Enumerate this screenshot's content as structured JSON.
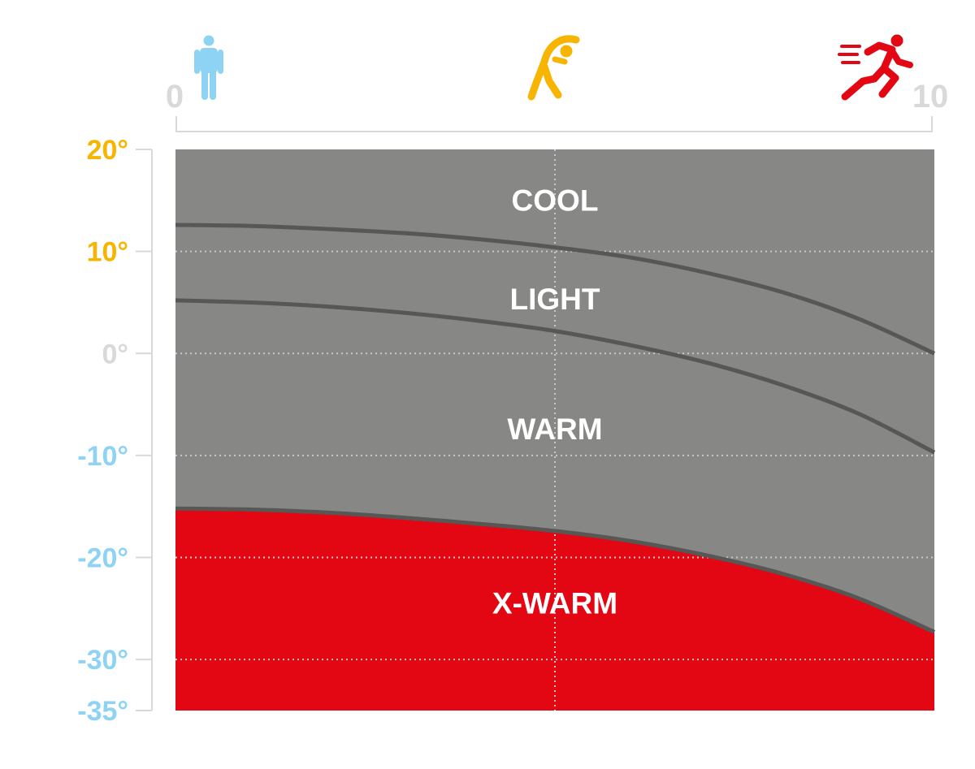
{
  "chart_data": {
    "type": "area",
    "x_axis": {
      "range": [
        0,
        10
      ],
      "tick_labels": [
        "0",
        "10"
      ],
      "position": "top",
      "icons": [
        {
          "name": "standing-person-icon",
          "x": 0.5,
          "color": "#8fd3f4"
        },
        {
          "name": "stretching-person-icon",
          "x": 5,
          "color": "#f7b400"
        },
        {
          "name": "running-person-icon",
          "x": 9.3,
          "color": "#e30613"
        }
      ]
    },
    "y_axis": {
      "range": [
        -35,
        20
      ],
      "ticks": [
        {
          "value": 20,
          "label": "20°",
          "color": "#f7b400"
        },
        {
          "value": 10,
          "label": "10°",
          "color": "#f7b400"
        },
        {
          "value": 0,
          "label": "0°",
          "color": "#d9d9d9"
        },
        {
          "value": -10,
          "label": "-10°",
          "color": "#8fd3f4"
        },
        {
          "value": -20,
          "label": "-20°",
          "color": "#8fd3f4"
        },
        {
          "value": -30,
          "label": "-30°",
          "color": "#8fd3f4"
        },
        {
          "value": -35,
          "label": "-35°",
          "color": "#8fd3f4"
        }
      ]
    },
    "grid": {
      "horizontal": true,
      "vertical_at": [
        5
      ],
      "style": "dotted"
    },
    "boundaries": [
      {
        "name": "cool-light-boundary",
        "x": [
          0,
          1,
          2,
          3,
          4,
          5,
          6,
          7,
          8,
          9,
          10
        ],
        "y": [
          12.6,
          12.5,
          12.2,
          11.8,
          11.2,
          10.4,
          9.4,
          7.9,
          6.0,
          3.4,
          0.0
        ]
      },
      {
        "name": "light-warm-boundary",
        "x": [
          0,
          1,
          2,
          3,
          4,
          5,
          6,
          7,
          8,
          9,
          10
        ],
        "y": [
          5.2,
          5.0,
          4.6,
          4.0,
          3.2,
          2.2,
          0.8,
          -0.9,
          -3.1,
          -5.9,
          -9.7
        ]
      },
      {
        "name": "warm-xwarm-boundary",
        "x": [
          0,
          1,
          2,
          3,
          4,
          5,
          6,
          7,
          8,
          9,
          10
        ],
        "y": [
          -15.2,
          -15.3,
          -15.6,
          -16.1,
          -16.7,
          -17.4,
          -18.4,
          -19.8,
          -21.6,
          -24.0,
          -27.3
        ]
      }
    ],
    "zones": [
      {
        "label": "COOL",
        "color": "#878786",
        "label_x": 5,
        "label_y": 14
      },
      {
        "label": "LIGHT",
        "color": "#878786",
        "label_x": 5,
        "label_y": 4.3
      },
      {
        "label": "WARM",
        "color": "#878786",
        "label_x": 5,
        "label_y": -8.4
      },
      {
        "label": "X-WARM",
        "color": "#e30613",
        "label_x": 5,
        "label_y": -25.5
      }
    ],
    "colors": {
      "plot_bg": "#878786",
      "boundary_line": "#575756",
      "grid": "#c8c8c8",
      "axis_line": "#d9d9d9",
      "xwarm": "#e30613"
    }
  }
}
